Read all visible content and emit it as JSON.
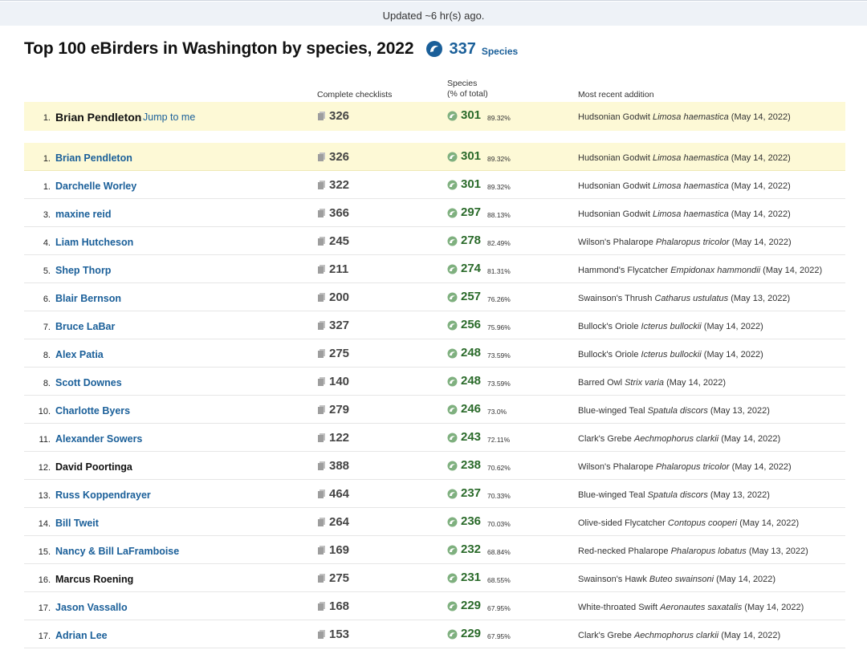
{
  "update_bar": {
    "text": "Updated ~6 hr(s) ago."
  },
  "header": {
    "title": "Top 100 eBirders in Washington by species, 2022",
    "total_species": "337",
    "total_species_label": "Species",
    "icon": "species-swirl-icon"
  },
  "columns": {
    "checklists": "Complete checklists",
    "species_line1": "Species",
    "species_line2": "(% of total)",
    "recent": "Most recent addition"
  },
  "me": {
    "rank": "1.",
    "name": "Brian Pendleton",
    "jump": "Jump to me",
    "checklists": "326",
    "species": "301",
    "pct": "89.32%",
    "common": "Hudsonian Godwit",
    "sci": "Limosa haemastica",
    "date": "(May 14, 2022)"
  },
  "rows": [
    {
      "rank": "1.",
      "name": "Brian Pendleton",
      "checklists": "326",
      "species": "301",
      "pct": "89.32%",
      "common": "Hudsonian Godwit",
      "sci": "Limosa haemastica",
      "date": "(May 14, 2022)"
    },
    {
      "rank": "1.",
      "name": "Darchelle Worley",
      "checklists": "322",
      "species": "301",
      "pct": "89.32%",
      "common": "Hudsonian Godwit",
      "sci": "Limosa haemastica",
      "date": "(May 14, 2022)"
    },
    {
      "rank": "3.",
      "name": "maxine reid",
      "checklists": "366",
      "species": "297",
      "pct": "88.13%",
      "common": "Hudsonian Godwit",
      "sci": "Limosa haemastica",
      "date": "(May 14, 2022)"
    },
    {
      "rank": "4.",
      "name": "Liam Hutcheson",
      "checklists": "245",
      "species": "278",
      "pct": "82.49%",
      "common": "Wilson's Phalarope",
      "sci": "Phalaropus tricolor",
      "date": "(May 14, 2022)"
    },
    {
      "rank": "5.",
      "name": "Shep Thorp",
      "checklists": "211",
      "species": "274",
      "pct": "81.31%",
      "common": "Hammond's Flycatcher",
      "sci": "Empidonax hammondii",
      "date": "(May 14, 2022)"
    },
    {
      "rank": "6.",
      "name": "Blair Bernson",
      "checklists": "200",
      "species": "257",
      "pct": "76.26%",
      "common": "Swainson's Thrush",
      "sci": "Catharus ustulatus",
      "date": "(May 13, 2022)"
    },
    {
      "rank": "7.",
      "name": "Bruce LaBar",
      "checklists": "327",
      "species": "256",
      "pct": "75.96%",
      "common": "Bullock's Oriole",
      "sci": "Icterus bullockii",
      "date": "(May 14, 2022)"
    },
    {
      "rank": "8.",
      "name": "Alex Patia",
      "checklists": "275",
      "species": "248",
      "pct": "73.59%",
      "common": "Bullock's Oriole",
      "sci": "Icterus bullockii",
      "date": "(May 14, 2022)"
    },
    {
      "rank": "8.",
      "name": "Scott Downes",
      "checklists": "140",
      "species": "248",
      "pct": "73.59%",
      "common": "Barred Owl",
      "sci": "Strix varia",
      "date": "(May 14, 2022)"
    },
    {
      "rank": "10.",
      "name": "Charlotte Byers",
      "checklists": "279",
      "species": "246",
      "pct": "73.0%",
      "common": "Blue-winged Teal",
      "sci": "Spatula discors",
      "date": "(May 13, 2022)"
    },
    {
      "rank": "11.",
      "name": "Alexander Sowers",
      "checklists": "122",
      "species": "243",
      "pct": "72.11%",
      "common": "Clark's Grebe",
      "sci": "Aechmophorus clarkii",
      "date": "(May 14, 2022)"
    },
    {
      "rank": "12.",
      "name": "David Poortinga",
      "checklists": "388",
      "species": "238",
      "pct": "70.62%",
      "common": "Wilson's Phalarope",
      "sci": "Phalaropus tricolor",
      "date": "(May 14, 2022)"
    },
    {
      "rank": "13.",
      "name": "Russ Koppendrayer",
      "checklists": "464",
      "species": "237",
      "pct": "70.33%",
      "common": "Blue-winged Teal",
      "sci": "Spatula discors",
      "date": "(May 13, 2022)"
    },
    {
      "rank": "14.",
      "name": "Bill Tweit",
      "checklists": "264",
      "species": "236",
      "pct": "70.03%",
      "common": "Olive-sided Flycatcher",
      "sci": "Contopus cooperi",
      "date": "(May 14, 2022)"
    },
    {
      "rank": "15.",
      "name": "Nancy & Bill LaFramboise",
      "checklists": "169",
      "species": "232",
      "pct": "68.84%",
      "common": "Red-necked Phalarope",
      "sci": "Phalaropus lobatus",
      "date": "(May 13, 2022)"
    },
    {
      "rank": "16.",
      "name": "Marcus Roening",
      "checklists": "275",
      "species": "231",
      "pct": "68.55%",
      "common": "Swainson's Hawk",
      "sci": "Buteo swainsoni",
      "date": "(May 14, 2022)"
    },
    {
      "rank": "17.",
      "name": "Jason Vassallo",
      "checklists": "168",
      "species": "229",
      "pct": "67.95%",
      "common": "White-throated Swift",
      "sci": "Aeronautes saxatalis",
      "date": "(May 14, 2022)"
    },
    {
      "rank": "17.",
      "name": "Adrian Lee",
      "checklists": "153",
      "species": "229",
      "pct": "67.95%",
      "common": "Clark's Grebe",
      "sci": "Aechmophorus clarkii",
      "date": "(May 14, 2022)"
    }
  ]
}
